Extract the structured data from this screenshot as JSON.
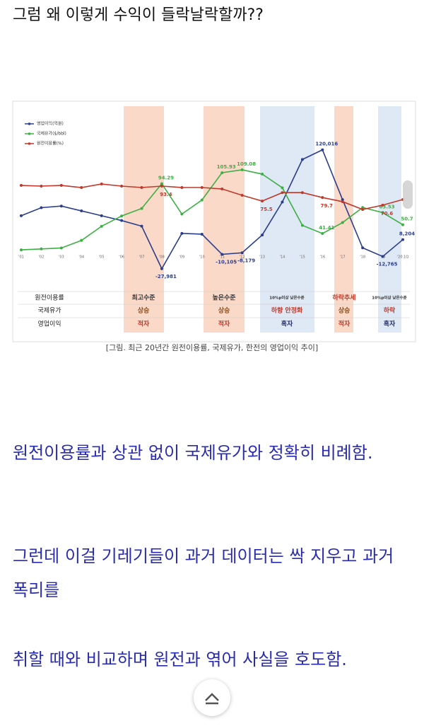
{
  "header": {
    "title": "그럼 왜 이렇게 수익이 들락날락할까??"
  },
  "chart_data": {
    "type": "line",
    "categories": [
      "'01",
      "'02",
      "'03",
      "'04",
      "'05",
      "'06",
      "'07",
      "'08",
      "'09",
      "'10",
      "'11",
      "'12",
      "'13",
      "'14",
      "'15",
      "'16",
      "'17",
      "'18",
      "'19",
      "'20.1Q"
    ],
    "series": [
      {
        "name": "영업이익(억원)",
        "color": "#2b3e8c",
        "ylim": [
          -41400,
          174400
        ],
        "values": [
          38000,
          48000,
          50000,
          44000,
          38000,
          32000,
          25000,
          -27981,
          16000,
          15000,
          -10105,
          -8179,
          14000,
          55000,
          108000,
          120016,
          58000,
          -2000,
          -12765,
          8204
        ],
        "value_labels": [
          null,
          null,
          null,
          null,
          null,
          null,
          null,
          "-27,981",
          null,
          null,
          "-10,105",
          "-8,179",
          null,
          null,
          null,
          "120,016",
          null,
          null,
          "-12,765",
          "8,204"
        ]
      },
      {
        "name": "국제유가($/bbl)",
        "color": "#3cb043",
        "ylim": [
          -7.5,
          176.7
        ],
        "values": [
          24,
          25,
          26,
          34,
          49,
          60,
          68,
          94.29,
          62,
          77,
          105.93,
          109.08,
          104.5,
          90,
          50,
          41.41,
          53,
          69,
          63.53,
          50.7
        ],
        "value_labels": [
          null,
          null,
          null,
          null,
          null,
          null,
          null,
          "94.29",
          null,
          null,
          "105.93",
          "109.08",
          null,
          null,
          null,
          "41.41",
          null,
          null,
          "63.53",
          "50.7"
        ]
      },
      {
        "name": "원전이용률(%)",
        "color": "#c0392b",
        "ylim": [
          -18.5,
          189.2
        ],
        "values": [
          94.2,
          93.4,
          94.2,
          91.7,
          95.9,
          93.4,
          91.7,
          93.4,
          91.7,
          91.7,
          90.0,
          82.4,
          75.5,
          85.6,
          85.6,
          79.7,
          74.8,
          65.4,
          70.6,
          77.3
        ],
        "value_labels": [
          null,
          null,
          null,
          null,
          null,
          null,
          null,
          "93.4",
          null,
          null,
          null,
          null,
          "75.5",
          null,
          null,
          "79.7",
          null,
          null,
          "70.6",
          null
        ]
      }
    ]
  },
  "table": {
    "rows": [
      [
        "원전이용률",
        "최고수준",
        "높은수준",
        "10%p이상 낮은수준",
        "하락추세",
        "10%p이상 낮은수준"
      ],
      [
        "국제유가",
        "상승",
        "상승",
        "하향 안정화",
        "상승",
        "하락"
      ],
      [
        "영업이익",
        "적자",
        "적자",
        "흑자",
        "적자",
        "흑자"
      ]
    ]
  },
  "caption": "[그림. 최근 20년간 원전이용률, 국제유가, 한전의 영업이익 추이]",
  "body": [
    "원전이용률과 상관 없이 국제유가와 정확히 비례함.",
    "그런데 이걸 기레기들이 과거 데이터는 싹 지우고 과거 폭리를",
    "취할 때와 비교하며 원전과 엮어 사실을 호도함."
  ]
}
